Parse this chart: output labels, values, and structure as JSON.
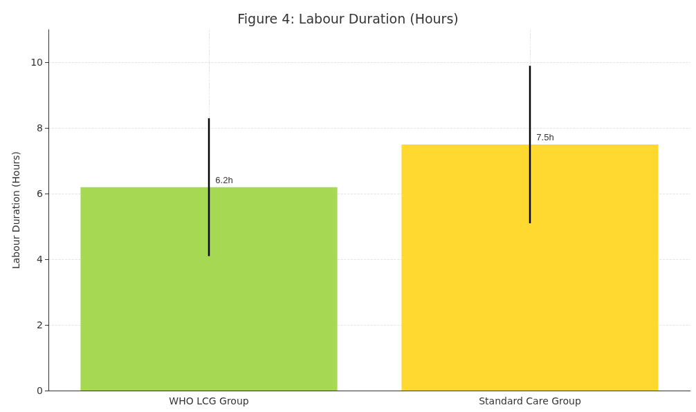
{
  "chart_data": {
    "type": "bar",
    "title": "Figure 4: Labour Duration (Hours)",
    "ylabel": "Labour Duration (Hours)",
    "categories": [
      "WHO LCG Group",
      "Standard Care Group"
    ],
    "values": [
      6.2,
      7.5
    ],
    "colors": [
      "#a6d854",
      "#ffd92f"
    ],
    "errors": [
      2.1,
      2.4
    ],
    "value_labels": [
      "6.2h",
      "7.5h"
    ],
    "ylim": [
      0,
      11
    ],
    "yticks": [
      0,
      2,
      4,
      6,
      8,
      10
    ],
    "grid": true
  }
}
